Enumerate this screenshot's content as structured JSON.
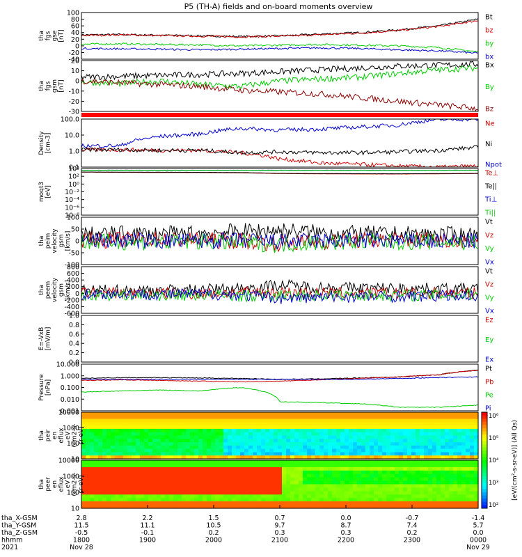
{
  "title": "P5 (TH-A) fields and on-board moments overview",
  "chart_data": [
    {
      "type": "line",
      "ylabel": [
        "tha",
        "fgs",
        "gse",
        "[nT]"
      ],
      "ylim": [
        -40,
        100
      ],
      "yticks": [
        "100",
        "80",
        "60",
        "40",
        "20",
        "0",
        "-20",
        "-40"
      ],
      "series": [
        {
          "name": "Bt",
          "color": "#000000",
          "values": [
            33,
            34,
            32,
            30,
            28,
            30,
            35,
            40,
            48,
            60,
            80
          ]
        },
        {
          "name": "bz",
          "color": "#cc0000",
          "values": [
            31,
            33,
            31,
            29,
            27,
            29,
            33,
            38,
            46,
            58,
            76
          ]
        },
        {
          "name": "by",
          "color": "#00cc00",
          "values": [
            5,
            6,
            4,
            3,
            0,
            2,
            4,
            2,
            0,
            -5,
            -18
          ]
        },
        {
          "name": "bx",
          "color": "#0000cc",
          "values": [
            -8,
            -9,
            -10,
            -12,
            -10,
            -8,
            -6,
            -8,
            -12,
            -15,
            -22
          ]
        }
      ]
    },
    {
      "type": "line",
      "ylabel": [
        "tha",
        "fgs",
        "gsm",
        "[nT]"
      ],
      "ylim": [
        -35,
        20
      ],
      "yticks": [
        "20",
        "10",
        "0",
        "-10",
        "-20",
        "-30"
      ],
      "series": [
        {
          "name": "Bx",
          "color": "#000000",
          "values": [
            2,
            3,
            4,
            5,
            6,
            8,
            10,
            12,
            14,
            15,
            16
          ]
        },
        {
          "name": "By",
          "color": "#00cc00",
          "values": [
            -3,
            -5,
            -2,
            -6,
            -8,
            -2,
            0,
            2,
            6,
            10,
            12
          ]
        },
        {
          "name": "Bz",
          "color": "#8b0000",
          "values": [
            -2,
            -4,
            -6,
            -8,
            -12,
            -14,
            -16,
            -20,
            -24,
            -28,
            -32
          ]
        }
      ]
    },
    {
      "type": "line",
      "ylabel": [
        "Density",
        "[cm-3]"
      ],
      "scale": "log",
      "ylim": [
        0.05,
        200
      ],
      "yticks": [
        "100.0",
        "10.0",
        "1.0",
        "0.1"
      ],
      "series": [
        {
          "name": "Ne",
          "color": "#cc0000",
          "values": [
            1,
            1,
            0.9,
            0.9,
            0.6,
            0.2,
            0.1,
            0.08,
            0.06,
            0.05,
            0.06
          ]
        },
        {
          "name": "Ni",
          "color": "#000000",
          "values": [
            1,
            1,
            0.9,
            0.9,
            0.6,
            0.7,
            0.6,
            0.6,
            0.7,
            0.9,
            1.5
          ]
        },
        {
          "name": "Npot",
          "color": "#0000cc",
          "values": [
            2,
            2,
            10,
            15,
            40,
            30,
            35,
            50,
            70,
            180,
            200
          ]
        }
      ]
    },
    {
      "type": "line",
      "ylabel": [
        "moqt3",
        "[eV]"
      ],
      "scale": "log",
      "ylim": [
        1e-10,
        10000
      ],
      "yticks": [
        "10⁴",
        "10²",
        "10⁰",
        "10⁻²",
        "10⁻⁴",
        "10⁻⁶",
        "10⁻⁸"
      ],
      "series": [
        {
          "name": "Te⊥",
          "color": "#cc0000",
          "values": [
            800,
            700,
            650,
            600,
            500,
            300,
            250,
            230,
            220,
            250,
            300
          ]
        },
        {
          "name": "Te||",
          "color": "#000000",
          "values": [
            900,
            800,
            750,
            700,
            600,
            350,
            300,
            280,
            260,
            300,
            350
          ]
        },
        {
          "name": "Ti⊥",
          "color": "#0000cc",
          "values": [
            3000,
            3000,
            3000,
            3000,
            3000,
            3000,
            3000,
            3000,
            3000,
            3000,
            3000
          ]
        },
        {
          "name": "Ti||",
          "color": "#00cc00",
          "values": [
            2800,
            2800,
            2800,
            2800,
            2800,
            2800,
            2800,
            2800,
            2800,
            2800,
            2800
          ]
        }
      ]
    },
    {
      "type": "line",
      "ylabel": [
        "tha",
        "peim",
        "velocity",
        "gsm",
        "[km/s]"
      ],
      "ylim": [
        -100,
        100
      ],
      "yticks": [
        "100",
        "50",
        "0",
        "-50",
        "-100"
      ],
      "series": [
        {
          "name": "Vt",
          "color": "#000000",
          "values": [
            25,
            30,
            28,
            32,
            40,
            45,
            35,
            30,
            28,
            26,
            25
          ]
        },
        {
          "name": "Vz",
          "color": "#cc0000",
          "values": [
            5,
            4,
            6,
            3,
            0,
            -10,
            -5,
            2,
            4,
            5,
            3
          ]
        },
        {
          "name": "Vy",
          "color": "#00cc00",
          "values": [
            -5,
            -4,
            -6,
            -3,
            -8,
            -15,
            -6,
            -3,
            -5,
            -4,
            -6
          ]
        },
        {
          "name": "Vx",
          "color": "#0000cc",
          "values": [
            0,
            2,
            -2,
            0,
            2,
            -3,
            0,
            2,
            0,
            -2,
            0
          ]
        }
      ]
    },
    {
      "type": "line",
      "ylabel": [
        "tha",
        "peem",
        "velocity",
        "gsm",
        "[km/s]"
      ],
      "ylim": [
        -600,
        800
      ],
      "yticks": [
        "800",
        "600",
        "400",
        "200",
        "0",
        "-200",
        "-400",
        "-600"
      ],
      "series": [
        {
          "name": "Vt",
          "color": "#000000",
          "values": [
            80,
            90,
            100,
            110,
            150,
            250,
            180,
            160,
            150,
            140,
            130
          ]
        },
        {
          "name": "Vz",
          "color": "#cc0000",
          "values": [
            20,
            10,
            0,
            -10,
            20,
            30,
            10,
            0,
            0,
            10,
            0
          ]
        },
        {
          "name": "Vy",
          "color": "#00cc00",
          "values": [
            -40,
            -50,
            -60,
            -50,
            -80,
            -70,
            -60,
            -50,
            -60,
            -50,
            -40
          ]
        },
        {
          "name": "Vx",
          "color": "#0000cc",
          "values": [
            -20,
            -20,
            -30,
            -20,
            -50,
            -150,
            -120,
            -100,
            -90,
            -80,
            -60
          ]
        }
      ]
    },
    {
      "type": "line",
      "ylabel": [
        "E=-VxB",
        "[mV/m]"
      ],
      "ylim": [
        0,
        1
      ],
      "yticks": [
        "1.0",
        "0.8",
        "0.6",
        "0.4",
        "0.2",
        "0.0"
      ],
      "series": [
        {
          "name": "Ez",
          "color": "#cc0000",
          "values": []
        },
        {
          "name": "Ey",
          "color": "#00cc00",
          "values": []
        },
        {
          "name": "Ex",
          "color": "#0000cc",
          "values": []
        }
      ]
    },
    {
      "type": "line",
      "ylabel": [
        "Pressure",
        "[nPa]"
      ],
      "scale": "log",
      "ylim": [
        0.001,
        10
      ],
      "yticks": [
        "10.000",
        "1.000",
        "0.100",
        "0.010",
        "0.001"
      ],
      "series": [
        {
          "name": "Pt",
          "color": "#000000",
          "values": [
            0.6,
            0.7,
            0.7,
            0.65,
            0.6,
            0.5,
            0.55,
            0.65,
            0.8,
            1.2,
            3.0
          ]
        },
        {
          "name": "Pb",
          "color": "#cc0000",
          "values": [
            0.4,
            0.45,
            0.4,
            0.35,
            0.3,
            0.35,
            0.45,
            0.6,
            0.8,
            1.2,
            3.0
          ]
        },
        {
          "name": "Pe",
          "color": "#00cc00",
          "values": [
            0.04,
            0.05,
            0.06,
            0.05,
            0.1,
            0.006,
            0.005,
            0.004,
            0.002,
            0.002,
            0.003
          ]
        },
        {
          "name": "Pi",
          "color": "#0000cc",
          "values": [
            0.5,
            0.5,
            0.5,
            0.5,
            0.5,
            0.5,
            0.5,
            0.5,
            0.6,
            0.7,
            0.8
          ]
        }
      ]
    },
    {
      "type": "heatmap",
      "ylabel": [
        "tha",
        "peir",
        "en",
        "eflux",
        "eV",
        "(cm2-s-",
        "sr-eV)"
      ],
      "yticks": [
        "10000",
        "1000",
        "100",
        "10"
      ]
    },
    {
      "type": "heatmap",
      "ylabel": [
        "tha",
        "peer",
        "en",
        "eflux",
        "eV",
        "(cm2-s-",
        "sr-eV)"
      ],
      "yticks": [
        "10000",
        "1000",
        "100",
        "10"
      ]
    }
  ],
  "colorbar": {
    "label": "[eV/(cm²-s-sr-eV)] (All Qs)",
    "ticks": [
      "10⁶",
      "10⁵",
      "10⁴",
      "10³",
      "10²"
    ]
  },
  "xaxis": {
    "rows": [
      {
        "label": "tha_X-GSM",
        "values": [
          "2.8",
          "2.2",
          "1.5",
          "0.7",
          "0.0",
          "-0.7",
          "-1.4"
        ]
      },
      {
        "label": "tha_Y-GSM",
        "values": [
          "11.5",
          "11.1",
          "10.5",
          "9.7",
          "8.7",
          "7.4",
          "5.7"
        ]
      },
      {
        "label": "tha_Z-GSM",
        "values": [
          "-0.5",
          "-0.1",
          "0.2",
          "0.3",
          "0.3",
          "0.2",
          "0.0"
        ]
      },
      {
        "label": "hhmm",
        "values": [
          "1800",
          "1900",
          "2000",
          "2100",
          "2200",
          "2300",
          "0000"
        ]
      },
      {
        "label": "2021",
        "values": [
          "Nov 28",
          "",
          "",
          "",
          "",
          "",
          "Nov 29"
        ]
      }
    ]
  }
}
